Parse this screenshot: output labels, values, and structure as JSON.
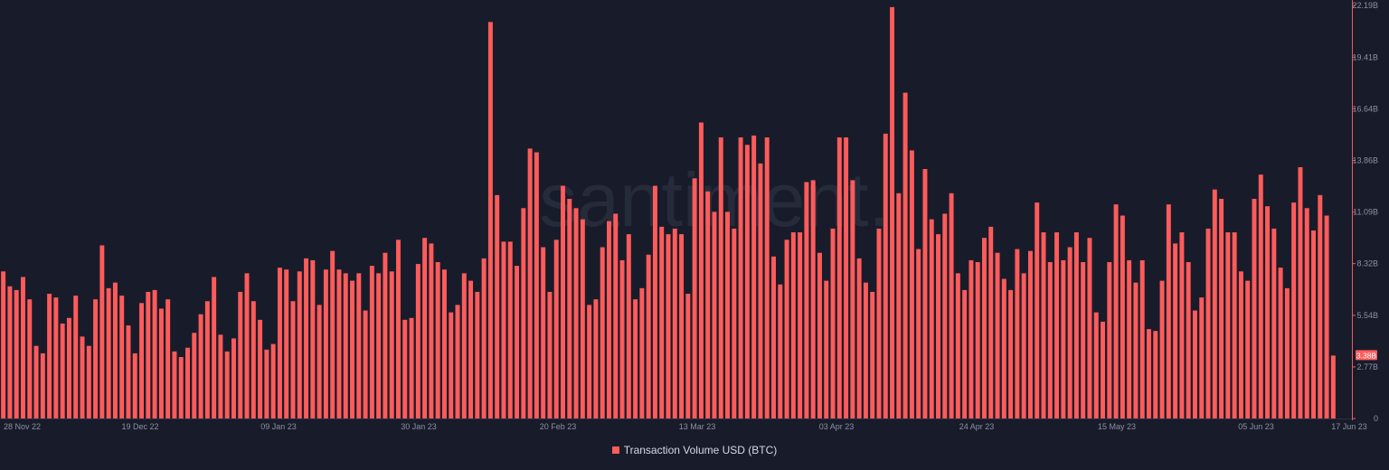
{
  "colors": {
    "background": "#181c2a",
    "bar": "#ff5b5b",
    "axis": "#f05a5a",
    "tick_text": "#8b90a3",
    "watermark": "#262b3b",
    "badge": "#ff5b5b",
    "badge_text": "#ffffff"
  },
  "watermark": "santiment.",
  "chart_data": {
    "type": "bar",
    "series": [
      {
        "name": "Transaction Volume USD (BTC)",
        "values": [
          7.9,
          7.1,
          6.9,
          7.6,
          6.4,
          3.9,
          3.5,
          6.7,
          6.5,
          5.1,
          5.4,
          6.6,
          4.4,
          3.9,
          6.4,
          9.3,
          7.0,
          7.3,
          6.6,
          5.0,
          3.5,
          6.2,
          6.8,
          6.9,
          5.9,
          6.4,
          3.6,
          3.3,
          3.8,
          4.6,
          5.6,
          6.3,
          7.6,
          4.5,
          3.6,
          4.3,
          6.8,
          7.8,
          6.3,
          5.3,
          3.7,
          4.0,
          8.1,
          8.0,
          6.3,
          7.9,
          8.6,
          8.5,
          6.1,
          8.0,
          9.0,
          8.0,
          7.8,
          7.4,
          7.8,
          5.8,
          8.2,
          7.8,
          8.9,
          7.9,
          9.6,
          5.3,
          5.4,
          8.3,
          9.7,
          9.4,
          8.4,
          8.0,
          5.7,
          6.1,
          7.8,
          7.4,
          6.8,
          8.6,
          21.3,
          12.0,
          9.5,
          9.5,
          8.2,
          11.3,
          14.5,
          14.3,
          9.2,
          6.8,
          9.6,
          12.5,
          11.8,
          11.3,
          10.7,
          6.1,
          6.4,
          9.2,
          10.6,
          11.0,
          8.5,
          9.9,
          6.4,
          7.0,
          8.8,
          12.5,
          10.3,
          9.9,
          10.2,
          9.9,
          6.7,
          12.9,
          15.9,
          12.2,
          11.1,
          15.1,
          11.1,
          10.2,
          15.1,
          14.7,
          15.2,
          13.7,
          15.1,
          8.7,
          7.2,
          9.6,
          10.0,
          10.0,
          12.7,
          12.8,
          8.9,
          7.4,
          10.2,
          15.1,
          15.1,
          12.8,
          8.6,
          7.3,
          6.8,
          10.2,
          15.3,
          22.1,
          12.1,
          17.5,
          14.4,
          9.1,
          13.4,
          10.7,
          9.9,
          11.0,
          12.1,
          7.8,
          6.9,
          8.5,
          8.4,
          9.7,
          10.3,
          8.9,
          7.5,
          6.9,
          9.1,
          7.8,
          9.0,
          11.6,
          10.0,
          8.4,
          10.0,
          8.5,
          9.2,
          10.0,
          8.4,
          9.7,
          5.7,
          5.2,
          8.4,
          11.5,
          10.9,
          8.5,
          7.3,
          8.5,
          4.8,
          4.7,
          7.4,
          11.5,
          9.4,
          10.0,
          8.4,
          5.8,
          6.5,
          10.2,
          12.3,
          11.8,
          10.0,
          10.0,
          7.9,
          7.4,
          11.8,
          13.1,
          11.4,
          10.2,
          8.1,
          7.0,
          11.6,
          13.5,
          11.3,
          10.1,
          12.0,
          10.9,
          3.38
        ]
      }
    ],
    "x_labels": [
      "28 Nov 22",
      "19 Dec 22",
      "09 Jan 23",
      "30 Jan 23",
      "20 Feb 23",
      "13 Mar 23",
      "03 Apr 23",
      "24 Apr 23",
      "15 May 23",
      "05 Jun 23",
      "17 Jun 23"
    ],
    "y_ticks": [
      0,
      2.77,
      5.54,
      8.32,
      11.09,
      13.86,
      16.64,
      19.41,
      22.19
    ],
    "y_tick_labels": [
      "0",
      "2.77B",
      "5.54B",
      "8.32B",
      "11.09B",
      "13.86B",
      "16.64B",
      "19.41B",
      "22.19B"
    ],
    "ylim": [
      0,
      22.19
    ],
    "unit": "B",
    "last_value_label": "3.38B",
    "legend": {
      "label": "Transaction Volume USD (BTC)",
      "position": "bottom-center"
    },
    "grid": false
  }
}
